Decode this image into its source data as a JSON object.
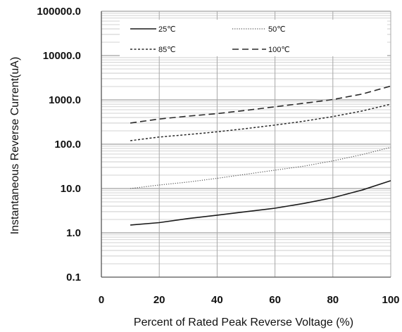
{
  "chart_data": {
    "type": "line",
    "title": "",
    "xlabel": "Percent of  Rated Peak Reverse Voltage (%)",
    "ylabel": "Instantaneous Reverse Current(uA)",
    "xlim": [
      0,
      100
    ],
    "ylim": [
      0.1,
      100000
    ],
    "y_scale": "log",
    "grid": true,
    "legend_position": "top-center",
    "x_ticks": [
      "0",
      "20",
      "40",
      "60",
      "80",
      "100"
    ],
    "y_ticks": [
      "0.1",
      "1.0",
      "10.0",
      "100.0",
      "1000.0",
      "10000.0",
      "100000.0"
    ],
    "x_tick_values": [
      0,
      20,
      40,
      60,
      80,
      100
    ],
    "y_tick_values": [
      0.1,
      1,
      10,
      100,
      1000,
      10000,
      100000
    ],
    "series": [
      {
        "name": "25℃",
        "style": "solid",
        "x": [
          10,
          20,
          30,
          40,
          50,
          60,
          70,
          80,
          90,
          100
        ],
        "y": [
          1.5,
          1.7,
          2.1,
          2.5,
          3.0,
          3.6,
          4.6,
          6.2,
          9.2,
          15
        ]
      },
      {
        "name": "50℃",
        "style": "dotted",
        "x": [
          10,
          20,
          30,
          40,
          50,
          60,
          70,
          80,
          90,
          100
        ],
        "y": [
          10,
          12,
          14,
          17,
          21,
          26,
          32,
          42,
          58,
          85
        ]
      },
      {
        "name": "85℃",
        "style": "short-dash",
        "x": [
          10,
          20,
          30,
          40,
          50,
          60,
          70,
          80,
          90,
          100
        ],
        "y": [
          120,
          145,
          165,
          190,
          225,
          270,
          330,
          420,
          560,
          800
        ]
      },
      {
        "name": "100℃",
        "style": "long-dash",
        "x": [
          10,
          20,
          30,
          40,
          50,
          60,
          70,
          80,
          90,
          100
        ],
        "y": [
          300,
          370,
          430,
          490,
          580,
          700,
          840,
          1020,
          1350,
          2050
        ]
      }
    ]
  }
}
